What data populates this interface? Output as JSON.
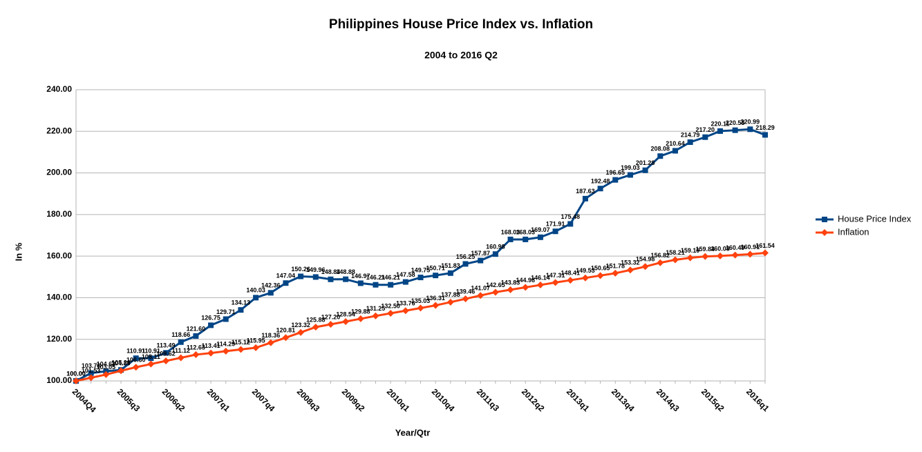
{
  "chart_data": {
    "type": "line",
    "title": "Philippines House Price Index vs. Inflation",
    "subtitle": "2004 to 2016 Q2",
    "x_label": "Year/Qtr",
    "y_label": "In %",
    "categories": [
      "2004Q4",
      null,
      null,
      "2005q3",
      null,
      null,
      "2006q2",
      null,
      null,
      "2007q1",
      null,
      null,
      "2007q4",
      null,
      null,
      "2008q3",
      null,
      null,
      "2009q2",
      null,
      null,
      "2010q1",
      null,
      null,
      "2010q4",
      null,
      null,
      "2011q3",
      null,
      null,
      "2012q2",
      null,
      null,
      "2013q1",
      null,
      null,
      "2013q4",
      null,
      null,
      "2014q3",
      null,
      null,
      "2015q2",
      null,
      null,
      "2016q1",
      null
    ],
    "ylim": [
      100,
      240
    ],
    "yticks": [
      {
        "value": 100,
        "label": "100.00"
      },
      {
        "value": 120,
        "label": "120.00"
      },
      {
        "value": 140,
        "label": "140.00"
      },
      {
        "value": 160,
        "label": "160.00"
      },
      {
        "value": 180,
        "label": "180.00"
      },
      {
        "value": 200,
        "label": "200.00"
      },
      {
        "value": 220,
        "label": "220.00"
      },
      {
        "value": 240,
        "label": "240.00"
      }
    ],
    "grid": true,
    "legend": "right",
    "series": [
      {
        "name": "House Price Index",
        "color": "#004586",
        "marker": "square",
        "values": [
          100.0,
          103.78,
          104.63,
          105.28,
          110.91,
          110.91,
          113.49,
          118.66,
          121.6,
          126.75,
          129.71,
          134.13,
          140.03,
          142.36,
          147.04,
          150.26,
          149.96,
          148.84,
          148.88,
          146.97,
          146.21,
          146.21,
          147.58,
          149.75,
          150.71,
          151.83,
          156.25,
          157.87,
          160.98,
          168.03,
          168.03,
          169.07,
          171.91,
          175.48,
          187.63,
          192.48,
          196.65,
          199.03,
          201.28,
          208.08,
          210.64,
          214.79,
          217.2,
          220.11,
          220.53,
          220.99,
          218.29
        ],
        "value_labels": [
          "100.00",
          "103.78",
          "104.63",
          "105.28",
          "110.91",
          "110.91",
          "113.49",
          "118.66",
          "121.60",
          "126.75",
          "129.71",
          "134.13",
          "140.03",
          "142.36",
          "147.04",
          "150.26",
          "149.96",
          "148.84",
          "148.88",
          "146.97",
          "146.21",
          "146.21",
          "147.58",
          "149.75",
          "150.71",
          "151.83",
          "156.25",
          "157.87",
          "160.98",
          "168.03",
          "168.03",
          "169.07",
          "171.91",
          "175.48",
          "187.63",
          "192.48",
          "196.65",
          "199.03",
          "201.28",
          "208.08",
          "210.64",
          "214.79",
          "217.20",
          "220.11",
          "220.53",
          "220.99",
          "218.29"
        ]
      },
      {
        "name": "Inflation",
        "color": "#ff420e",
        "marker": "diamond",
        "values": [
          100.0,
          101.53,
          103.05,
          104.89,
          106.6,
          108.11,
          109.62,
          111.12,
          112.63,
          113.41,
          114.29,
          115.12,
          115.95,
          118.36,
          120.81,
          123.32,
          125.88,
          127.2,
          128.54,
          129.88,
          131.25,
          132.5,
          133.76,
          135.03,
          136.31,
          137.88,
          139.46,
          141.07,
          142.65,
          143.83,
          144.98,
          146.14,
          147.31,
          148.41,
          149.53,
          150.65,
          151.78,
          153.32,
          154.98,
          156.82,
          158.21,
          159.19,
          159.84,
          160.08,
          160.49,
          160.91,
          161.54
        ],
        "value_labels": [
          "100.00",
          "101.53",
          "103.05",
          "104.89",
          "106.60",
          "108.11",
          "109.62",
          "111.12",
          "112.63",
          "113.41",
          "114.29",
          "115.12",
          "115.95",
          "118.36",
          "120.81",
          "123.32",
          "125.88",
          "127.20",
          "128.54",
          "129.88",
          "131.25",
          "132.50",
          "133.76",
          "135.03",
          "136.31",
          "137.88",
          "139.46",
          "141.07",
          "142.65",
          "143.83",
          "144.98",
          "146.14",
          "147.31",
          "148.41",
          "149.53",
          "150.65",
          "151.78",
          "153.32",
          "154.98",
          "156.82",
          "158.21",
          "159.19",
          "159.84",
          "160.08",
          "160.49",
          "160.91",
          "161.54"
        ]
      }
    ]
  }
}
